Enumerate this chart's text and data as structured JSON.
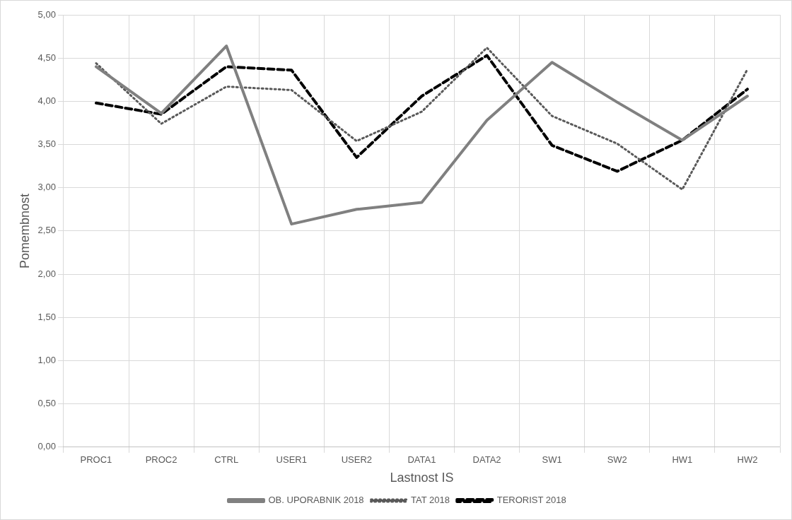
{
  "chart_data": {
    "type": "line",
    "xlabel": "Lastnost IS",
    "ylabel": "Pomembnost",
    "categories": [
      "PROC1",
      "PROC2",
      "CTRL",
      "USER1",
      "USER2",
      "DATA1",
      "DATA2",
      "SW1",
      "SW2",
      "HW1",
      "HW2"
    ],
    "series": [
      {
        "name": "OB. UPORABNIK 2018",
        "color": "#808080",
        "line_style": "solid",
        "values": [
          4.4,
          3.86,
          4.64,
          2.58,
          2.75,
          2.83,
          3.78,
          4.45,
          3.99,
          3.55,
          4.06
        ]
      },
      {
        "name": "TAT 2018",
        "color": "#595959",
        "line_style": "dotted",
        "values": [
          4.44,
          3.74,
          4.17,
          4.13,
          3.54,
          3.88,
          4.62,
          3.83,
          3.51,
          2.98,
          4.37
        ]
      },
      {
        "name": "TERORIST 2018",
        "color": "#000000",
        "line_style": "dashed",
        "values": [
          3.98,
          3.85,
          4.4,
          4.36,
          3.35,
          4.06,
          4.53,
          3.49,
          3.19,
          3.55,
          4.14
        ]
      }
    ],
    "ylim": [
      0,
      5
    ],
    "yticks": [
      {
        "value": 0,
        "label": "0,00"
      },
      {
        "value": 0.5,
        "label": "0,50"
      },
      {
        "value": 1,
        "label": "1,00"
      },
      {
        "value": 1.5,
        "label": "1,50"
      },
      {
        "value": 2,
        "label": "2,00"
      },
      {
        "value": 2.5,
        "label": "2,50"
      },
      {
        "value": 3,
        "label": "3,00"
      },
      {
        "value": 3.5,
        "label": "3,50"
      },
      {
        "value": 4,
        "label": "4,00"
      },
      {
        "value": 4.5,
        "label": "4,50"
      },
      {
        "value": 5,
        "label": "5,00"
      }
    ],
    "grid": true,
    "legend": "bottom",
    "marker": "none"
  }
}
